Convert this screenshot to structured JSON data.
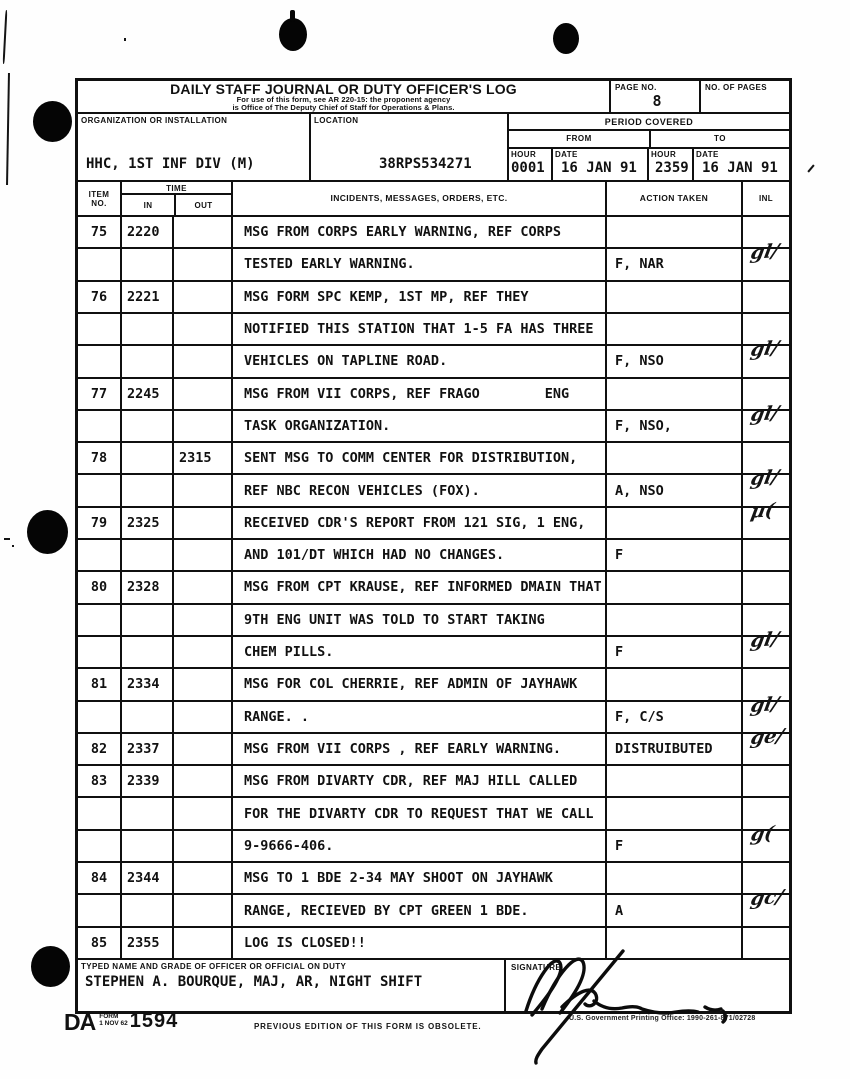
{
  "header": {
    "title": "DAILY STAFF JOURNAL OR DUTY OFFICER'S LOG",
    "subtitle1": "For use of this form, see AR 220-15: the proponent agency",
    "subtitle2": "is Office of  The Deputy Chief of Staff for Operations & Plans.",
    "page_no_label": "PAGE NO.",
    "page_no": "8",
    "no_of_pages_label": "NO. OF PAGES",
    "no_of_pages": "",
    "organization_label": "ORGANIZATION OR INSTALLATION",
    "organization": "HHC, 1ST INF DIV (M)",
    "location_label": "LOCATION",
    "location": "38RPS534271",
    "period_covered_label": "PERIOD COVERED",
    "from_label": "FROM",
    "to_label": "TO",
    "hour_label": "HOUR",
    "date_label": "DATE",
    "from_hour": "0001",
    "from_date": "16 JAN 91",
    "to_hour": "2359",
    "to_date": "16 JAN 91"
  },
  "log": {
    "columns": {
      "item_line1": "ITEM",
      "item_line2": "NO.",
      "time": "TIME",
      "in": "IN",
      "out": "OUT",
      "incidents": "INCIDENTS, MESSAGES, ORDERS, ETC.",
      "action": "ACTION TAKEN",
      "inl": "INL"
    },
    "rows": [
      {
        "item": "75",
        "in": "2220",
        "out": "",
        "text": "MSG FROM CORPS EARLY WARNING, REF CORPS",
        "action": "",
        "inl": ""
      },
      {
        "item": "",
        "in": "",
        "out": "",
        "text": "TESTED EARLY WARNING.",
        "action": "F, NAR",
        "inl": "gl/"
      },
      {
        "item": "76",
        "in": "2221",
        "out": "",
        "text": "MSG FORM SPC KEMP, 1ST MP, REF THEY",
        "action": "",
        "inl": ""
      },
      {
        "item": "",
        "in": "",
        "out": "",
        "text": "NOTIFIED THIS STATION THAT 1-5 FA HAS THREE",
        "action": "",
        "inl": ""
      },
      {
        "item": "",
        "in": "",
        "out": "",
        "text": "VEHICLES ON TAPLINE ROAD.",
        "action": "F, NSO",
        "inl": "gl/"
      },
      {
        "item": "77",
        "in": "2245",
        "out": "",
        "text": "MSG FROM VII CORPS, REF FRAGO        ENG",
        "action": "",
        "inl": ""
      },
      {
        "item": "",
        "in": "",
        "out": "",
        "text": "TASK ORGANIZATION.",
        "action": "F, NSO,",
        "inl": "gl/"
      },
      {
        "item": "78",
        "in": "",
        "out": "2315",
        "text": "SENT MSG TO COMM CENTER FOR DISTRIBUTION,",
        "action": "",
        "inl": ""
      },
      {
        "item": "",
        "in": "",
        "out": "",
        "text": "REF NBC RECON VEHICLES (FOX).",
        "action": "A, NSO",
        "inl": "gl/"
      },
      {
        "item": "79",
        "in": "2325",
        "out": "",
        "text": "RECEIVED CDR'S REPORT FROM 121 SIG, 1 ENG,",
        "action": "",
        "inl": "µ("
      },
      {
        "item": "",
        "in": "",
        "out": "",
        "text": "AND 101/DT WHICH HAD NO CHANGES.",
        "action": "F",
        "inl": ""
      },
      {
        "item": "80",
        "in": "2328",
        "out": "",
        "text": "MSG FROM CPT KRAUSE, REF INFORMED DMAIN THAT",
        "action": "",
        "inl": ""
      },
      {
        "item": "",
        "in": "",
        "out": "",
        "text": "9TH ENG UNIT WAS TOLD TO START TAKING",
        "action": "",
        "inl": ""
      },
      {
        "item": "",
        "in": "",
        "out": "",
        "text": "CHEM PILLS.",
        "action": "F",
        "inl": "gl/"
      },
      {
        "item": "81",
        "in": "2334",
        "out": "",
        "text": "MSG FOR COL CHERRIE, REF ADMIN OF JAYHAWK",
        "action": "",
        "inl": ""
      },
      {
        "item": "",
        "in": "",
        "out": "",
        "text": "RANGE. .",
        "action": "F, C/S",
        "inl": "gl/"
      },
      {
        "item": "82",
        "in": "2337",
        "out": "",
        "text": "MSG FROM VII CORPS , REF EARLY WARNING.",
        "action": "DISTRUIBUTED",
        "inl": "ge/"
      },
      {
        "item": "83",
        "in": "2339",
        "out": "",
        "text": "MSG FROM DIVARTY CDR, REF MAJ HILL CALLED",
        "action": "",
        "inl": ""
      },
      {
        "item": "",
        "in": "",
        "out": "",
        "text": "FOR THE DIVARTY CDR TO REQUEST THAT WE CALL",
        "action": "",
        "inl": ""
      },
      {
        "item": "",
        "in": "",
        "out": "",
        "text": "9-9666-406.",
        "action": "F",
        "inl": "g("
      },
      {
        "item": "84",
        "in": "2344",
        "out": "",
        "text": "MSG TO 1 BDE 2-34 MAY SHOOT ON JAYHAWK",
        "action": "",
        "inl": ""
      },
      {
        "item": "",
        "in": "",
        "out": "",
        "text": "RANGE, RECIEVED BY CPT GREEN 1 BDE.",
        "action": "A",
        "inl": "gc/"
      },
      {
        "item": "85",
        "in": "2355",
        "out": "",
        "text": "LOG IS CLOSED!!",
        "action": "",
        "inl": ""
      }
    ]
  },
  "footer_block": {
    "typed_name_label": "TYPED NAME AND GRADE OF OFFICER OR OFFICIAL ON DUTY",
    "typed_name": "STEPHEN A. BOURQUE, MAJ, AR, NIGHT SHIFT",
    "signature_label": "SIGNATURE"
  },
  "form_footer": {
    "da": "DA",
    "form_word": "FORM",
    "form_date": "1 NOV 62",
    "form_number": "1594",
    "obsolete_note": "PREVIOUS EDITION OF THIS FORM IS OBSOLETE.",
    "gpo_note": "U.S. Government Printing Office: 1990-261-871/02728"
  }
}
